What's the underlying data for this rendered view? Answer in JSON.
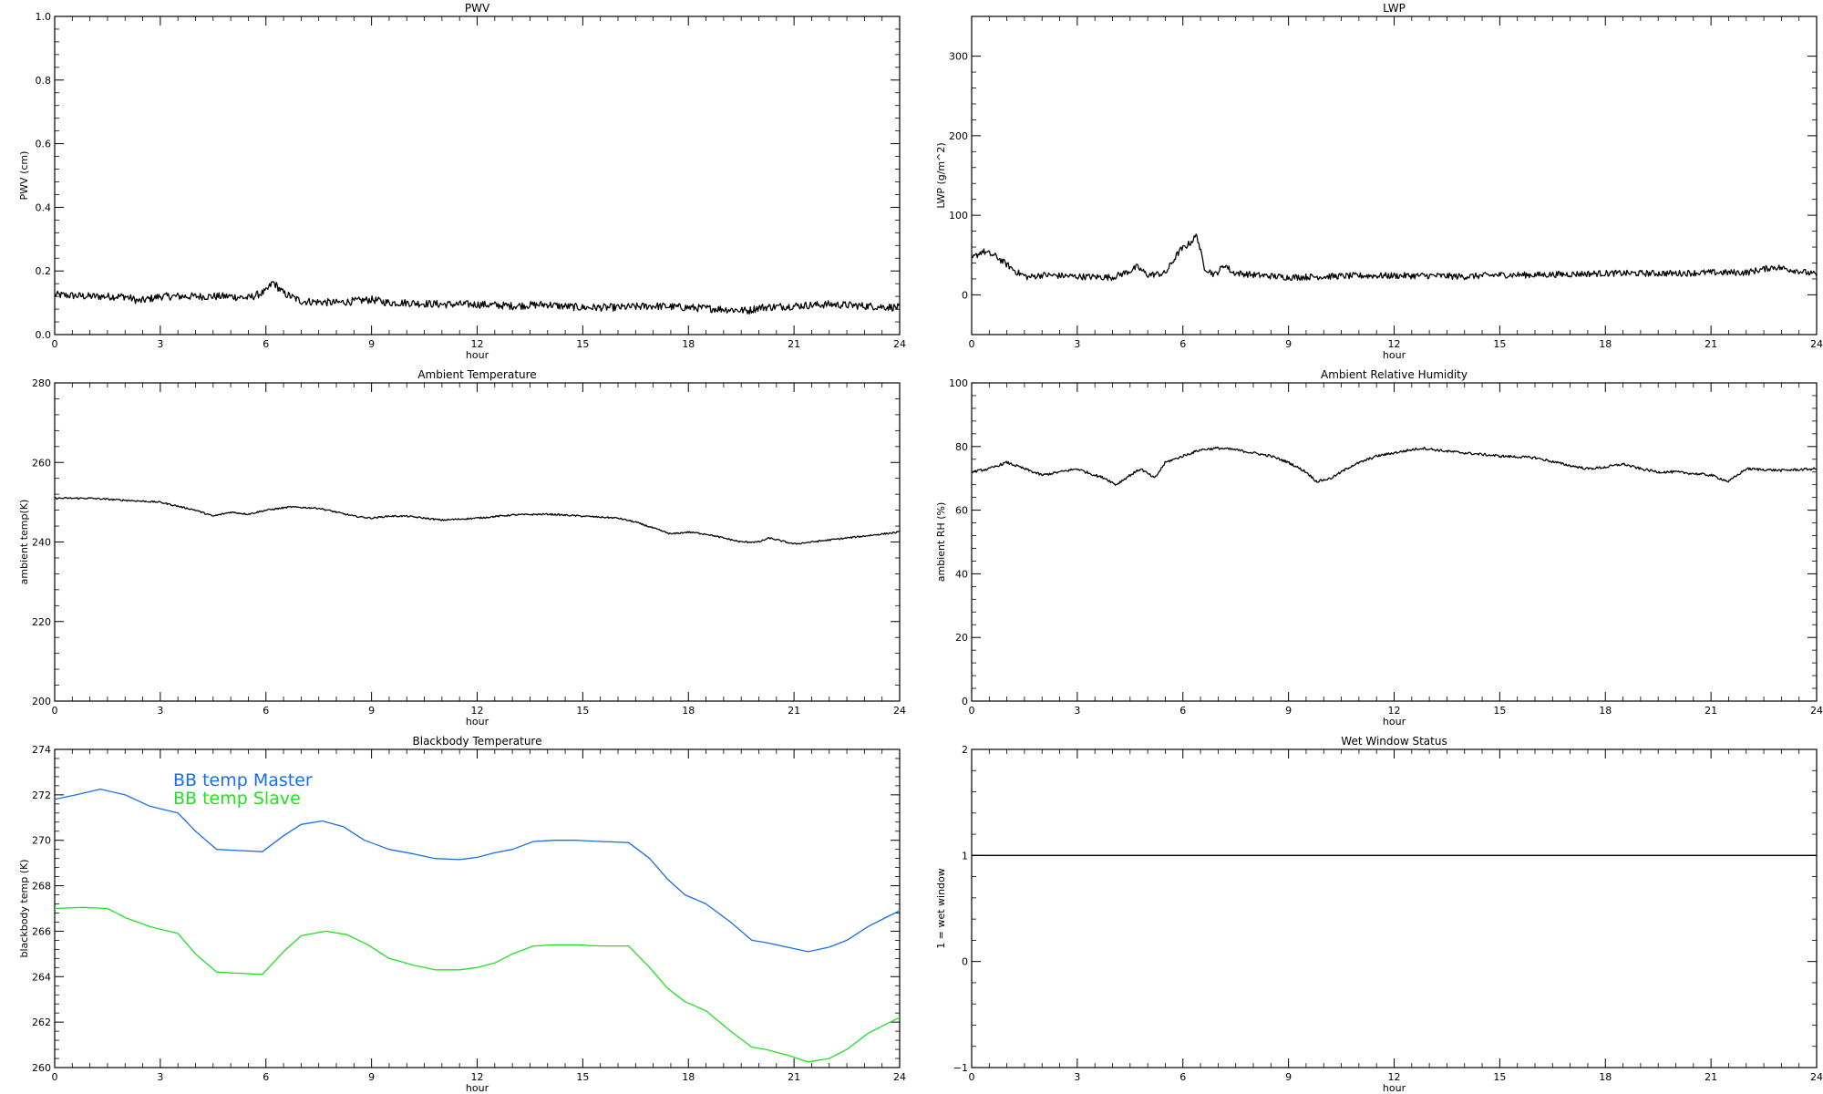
{
  "chart_data": [
    {
      "type": "line",
      "title": "PWV",
      "xlabel": "hour",
      "ylabel": "PWV (cm)",
      "xlim": [
        0,
        24
      ],
      "ylim": [
        0,
        1.0
      ],
      "xticks": [
        0,
        3,
        6,
        9,
        12,
        15,
        18,
        21,
        24
      ],
      "yticks": [
        0.0,
        0.2,
        0.4,
        0.6,
        0.8,
        1.0
      ],
      "ytick_labels": [
        "0.0",
        "0.2",
        "0.4",
        "0.6",
        "0.8",
        "1.0"
      ],
      "noise": 0.012,
      "series": [
        {
          "color": "#000000",
          "x": [
            0,
            1,
            2,
            2.4,
            3,
            4,
            5,
            5.5,
            6,
            6.2,
            6.5,
            7,
            8,
            9,
            9.5,
            10,
            11,
            12,
            13,
            14,
            14.3,
            15,
            16,
            17,
            18,
            19,
            19.7,
            20,
            21,
            22,
            23,
            24
          ],
          "y": [
            0.125,
            0.12,
            0.12,
            0.105,
            0.12,
            0.12,
            0.12,
            0.115,
            0.135,
            0.165,
            0.13,
            0.105,
            0.1,
            0.11,
            0.1,
            0.1,
            0.095,
            0.095,
            0.09,
            0.095,
            0.09,
            0.085,
            0.085,
            0.09,
            0.085,
            0.08,
            0.075,
            0.085,
            0.09,
            0.095,
            0.09,
            0.085
          ]
        }
      ]
    },
    {
      "type": "line",
      "title": "LWP",
      "xlabel": "hour",
      "ylabel": "LWP (g/m^2)",
      "xlim": [
        0,
        24
      ],
      "ylim": [
        -50,
        350
      ],
      "xticks": [
        0,
        3,
        6,
        9,
        12,
        15,
        18,
        21,
        24
      ],
      "yticks": [
        0,
        100,
        200,
        300
      ],
      "ytick_labels": [
        "0",
        "100",
        "200",
        "300"
      ],
      "noise": 4,
      "series": [
        {
          "color": "#000000",
          "x": [
            0,
            0.3,
            0.7,
            1.0,
            1.3,
            1.6,
            2,
            3,
            4,
            4.5,
            4.7,
            5,
            5.5,
            5.9,
            6.2,
            6.4,
            6.6,
            6.9,
            7.2,
            7.4,
            8,
            9,
            10,
            11,
            12,
            13,
            14,
            15,
            16,
            17,
            18,
            19,
            20,
            21,
            22,
            22.8,
            23.5,
            24
          ],
          "y": [
            45,
            55,
            48,
            38,
            28,
            22,
            25,
            23,
            22,
            30,
            35,
            25,
            27,
            55,
            65,
            75,
            35,
            25,
            38,
            28,
            25,
            22,
            23,
            24,
            24,
            24,
            23,
            25,
            25,
            26,
            27,
            27,
            27,
            28,
            28,
            35,
            30,
            25
          ]
        }
      ]
    },
    {
      "type": "line",
      "title": "Ambient Temperature",
      "xlabel": "hour",
      "ylabel": "ambient temp(K)",
      "xlim": [
        0,
        24
      ],
      "ylim": [
        200,
        280
      ],
      "xticks": [
        0,
        3,
        6,
        9,
        12,
        15,
        18,
        21,
        24
      ],
      "yticks": [
        200,
        220,
        240,
        260,
        280
      ],
      "ytick_labels": [
        "200",
        "220",
        "240",
        "260",
        "280"
      ],
      "noise": 0.2,
      "series": [
        {
          "color": "#000000",
          "x": [
            0,
            1,
            2,
            3,
            3.5,
            4,
            4.5,
            5,
            5.5,
            6,
            6.7,
            7.5,
            8.5,
            9,
            9.5,
            10,
            11,
            12,
            13,
            14,
            15,
            16,
            16.5,
            17,
            17.5,
            18,
            18.5,
            19,
            19.5,
            20,
            20.3,
            21,
            21.5,
            22,
            23,
            24
          ],
          "y": [
            251,
            251,
            250.5,
            250,
            249,
            248,
            246.5,
            247.5,
            247,
            248,
            248.8,
            248.5,
            246.5,
            246,
            246.5,
            246.5,
            245.5,
            246,
            246.8,
            247,
            246.5,
            246,
            245,
            243.5,
            242,
            242.5,
            242,
            241,
            240,
            240,
            241,
            239.5,
            240,
            240.5,
            241.5,
            242.5
          ]
        }
      ]
    },
    {
      "type": "line",
      "title": "Ambient Relative Humidity",
      "xlabel": "hour",
      "ylabel": "ambient RH (%)",
      "xlim": [
        0,
        24
      ],
      "ylim": [
        0,
        100
      ],
      "xticks": [
        0,
        3,
        6,
        9,
        12,
        15,
        18,
        21,
        24
      ],
      "yticks": [
        0,
        20,
        40,
        60,
        80,
        100
      ],
      "ytick_labels": [
        "0",
        "20",
        "40",
        "60",
        "80",
        "100"
      ],
      "noise": 0.4,
      "series": [
        {
          "color": "#000000",
          "x": [
            0,
            0.5,
            1,
            1.5,
            2,
            2.5,
            3,
            3.5,
            3.8,
            4.1,
            4.5,
            4.8,
            5.2,
            5.5,
            6,
            6.5,
            7,
            7.5,
            8,
            8.5,
            9,
            9.5,
            9.8,
            10.2,
            10.8,
            11.5,
            12,
            12.5,
            12.8,
            13.5,
            14,
            15,
            16,
            17,
            17.5,
            18,
            18.5,
            19,
            19.5,
            20,
            20.5,
            21,
            21.5,
            22,
            23,
            24
          ],
          "y": [
            72,
            73,
            75,
            73,
            71,
            72,
            73,
            71,
            70,
            68,
            71,
            73,
            70,
            75,
            77,
            79,
            79.5,
            79,
            78,
            77,
            75,
            72,
            69,
            70,
            74,
            77,
            78,
            79,
            79.5,
            78.5,
            78,
            77,
            76.5,
            74,
            73,
            73.5,
            74.5,
            73,
            72,
            72,
            71.5,
            71,
            69,
            73,
            72.5,
            73
          ]
        }
      ]
    },
    {
      "type": "line",
      "title": "Blackbody Temperature",
      "xlabel": "hour",
      "ylabel": "blackbody temp (K)",
      "xlim": [
        0,
        24
      ],
      "ylim": [
        260,
        274
      ],
      "xticks": [
        0,
        3,
        6,
        9,
        12,
        15,
        18,
        21,
        24
      ],
      "yticks": [
        260,
        262,
        264,
        266,
        268,
        270,
        272,
        274
      ],
      "ytick_labels": [
        "260",
        "262",
        "264",
        "266",
        "268",
        "270",
        "272",
        "274"
      ],
      "noise": 0,
      "legend_position": "top-left",
      "series": [
        {
          "name": "BB temp Master",
          "color": "#1a6eea",
          "x": [
            0,
            0.6,
            1.3,
            2,
            2.7,
            3.5,
            4,
            4.6,
            5.2,
            5.9,
            6.5,
            7,
            7.6,
            8.2,
            8.8,
            9.5,
            10.2,
            10.8,
            11.5,
            12,
            12.5,
            13,
            13.6,
            14.2,
            14.8,
            15.5,
            16.3,
            16.9,
            17.4,
            17.9,
            18.5,
            19.2,
            19.8,
            20.2,
            20.8,
            21.4,
            22,
            22.5,
            23.1,
            23.6,
            24
          ],
          "y": [
            271.8,
            272.0,
            272.25,
            272.0,
            271.5,
            271.2,
            270.4,
            269.6,
            269.55,
            269.5,
            270.2,
            270.7,
            270.85,
            270.6,
            270.0,
            269.6,
            269.4,
            269.2,
            269.15,
            269.25,
            269.45,
            269.6,
            269.95,
            270.0,
            270.0,
            269.95,
            269.9,
            269.2,
            268.3,
            267.6,
            267.2,
            266.4,
            265.6,
            265.5,
            265.3,
            265.1,
            265.3,
            265.6,
            266.2,
            266.6,
            266.9
          ]
        },
        {
          "name": "BB temp Slave",
          "color": "#22e022",
          "x": [
            0,
            0.8,
            1.5,
            2,
            2.7,
            3.5,
            4,
            4.6,
            5.2,
            5.9,
            6.5,
            7,
            7.7,
            8.3,
            8.9,
            9.5,
            10.2,
            10.8,
            11.5,
            12,
            12.5,
            13,
            13.6,
            14.2,
            14.8,
            15.5,
            16.3,
            16.9,
            17.4,
            17.9,
            18.5,
            19.2,
            19.8,
            20.2,
            20.8,
            21.4,
            22,
            22.5,
            23.1,
            23.6,
            24
          ],
          "y": [
            267.0,
            267.05,
            267.0,
            266.6,
            266.2,
            265.9,
            265.0,
            264.2,
            264.15,
            264.1,
            265.1,
            265.8,
            266.0,
            265.85,
            265.4,
            264.8,
            264.5,
            264.3,
            264.3,
            264.4,
            264.6,
            265.0,
            265.35,
            265.4,
            265.4,
            265.35,
            265.35,
            264.4,
            263.5,
            262.9,
            262.5,
            261.6,
            260.9,
            260.8,
            260.55,
            260.25,
            260.4,
            260.8,
            261.5,
            261.9,
            262.2
          ]
        }
      ]
    },
    {
      "type": "line",
      "title": "Wet Window Status",
      "xlabel": "hour",
      "ylabel": "1 = wet window",
      "xlim": [
        0,
        24
      ],
      "ylim": [
        -1,
        2
      ],
      "xticks": [
        0,
        3,
        6,
        9,
        12,
        15,
        18,
        21,
        24
      ],
      "yticks": [
        -1,
        0,
        1,
        2
      ],
      "ytick_labels": [
        "−1",
        "0",
        "1",
        "2"
      ],
      "noise": 0,
      "series": [
        {
          "color": "#000000",
          "x": [
            0,
            24
          ],
          "y": [
            1,
            1
          ]
        }
      ]
    }
  ]
}
